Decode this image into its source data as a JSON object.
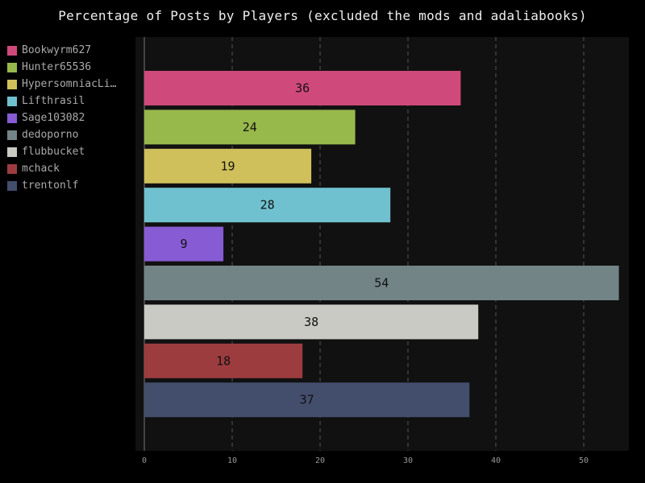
{
  "chart_data": {
    "type": "bar",
    "orientation": "horizontal",
    "title": "Percentage of Posts by Players (excluded the mods and adaliabooks)",
    "xlabel": "",
    "ylabel": "",
    "xlim": [
      0,
      55
    ],
    "x_ticks": [
      0,
      10,
      20,
      30,
      40,
      50
    ],
    "grid": true,
    "legend_position": "left",
    "categories": [
      "Bookwyrm627",
      "Hunter65536",
      "HypersomniacLi…",
      "Lifthrasil",
      "Sage103082",
      "dedoporno",
      "flubbucket",
      "mchack",
      "trentonlf"
    ],
    "values": [
      36,
      24,
      19,
      28,
      9,
      54,
      38,
      18,
      37
    ],
    "colors": [
      "#d0497b",
      "#97b84b",
      "#cfc05b",
      "#70c1cf",
      "#865bd3",
      "#738487",
      "#c9cac4",
      "#9c3c3f",
      "#434e6c"
    ]
  }
}
